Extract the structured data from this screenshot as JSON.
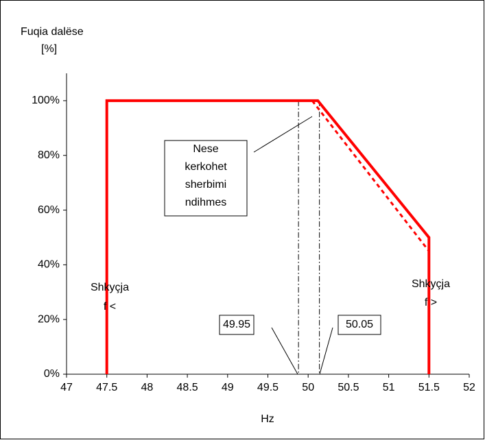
{
  "chart_data": {
    "type": "line",
    "y_label": [
      "Fuqia dalëse",
      "[%]"
    ],
    "x_label": "Hz",
    "xlim": [
      47,
      52
    ],
    "xticks": [
      47,
      47.5,
      48,
      48.5,
      49,
      49.5,
      50,
      50.5,
      51,
      51.5,
      52
    ],
    "ylim": [
      0,
      110
    ],
    "yticks": [
      {
        "value": 0,
        "label": "0%"
      },
      {
        "value": 20,
        "label": "20%"
      },
      {
        "value": 40,
        "label": "40%"
      },
      {
        "value": 60,
        "label": "60%"
      },
      {
        "value": 80,
        "label": "80%"
      },
      {
        "value": 100,
        "label": "100%"
      }
    ],
    "series": [
      {
        "color": "#ff0000",
        "dashed": false,
        "x": [
          47.5,
          47.5,
          50.12,
          51.5,
          51.5
        ],
        "values": [
          0,
          100,
          100,
          50,
          0
        ]
      },
      {
        "color": "#ff0000",
        "dashed": true,
        "x": [
          50.05,
          51.5
        ],
        "values": [
          100,
          45
        ]
      }
    ],
    "reference_lines": [
      49.88,
      50.14
    ],
    "annotations": [
      [
        "Nese",
        "kerkohet",
        "sherbimi",
        "ndihmes"
      ],
      [
        "Shkyçja",
        "f <"
      ],
      [
        "Shkyçja",
        "f >"
      ],
      [
        "49.95"
      ],
      [
        "50.05"
      ]
    ]
  }
}
